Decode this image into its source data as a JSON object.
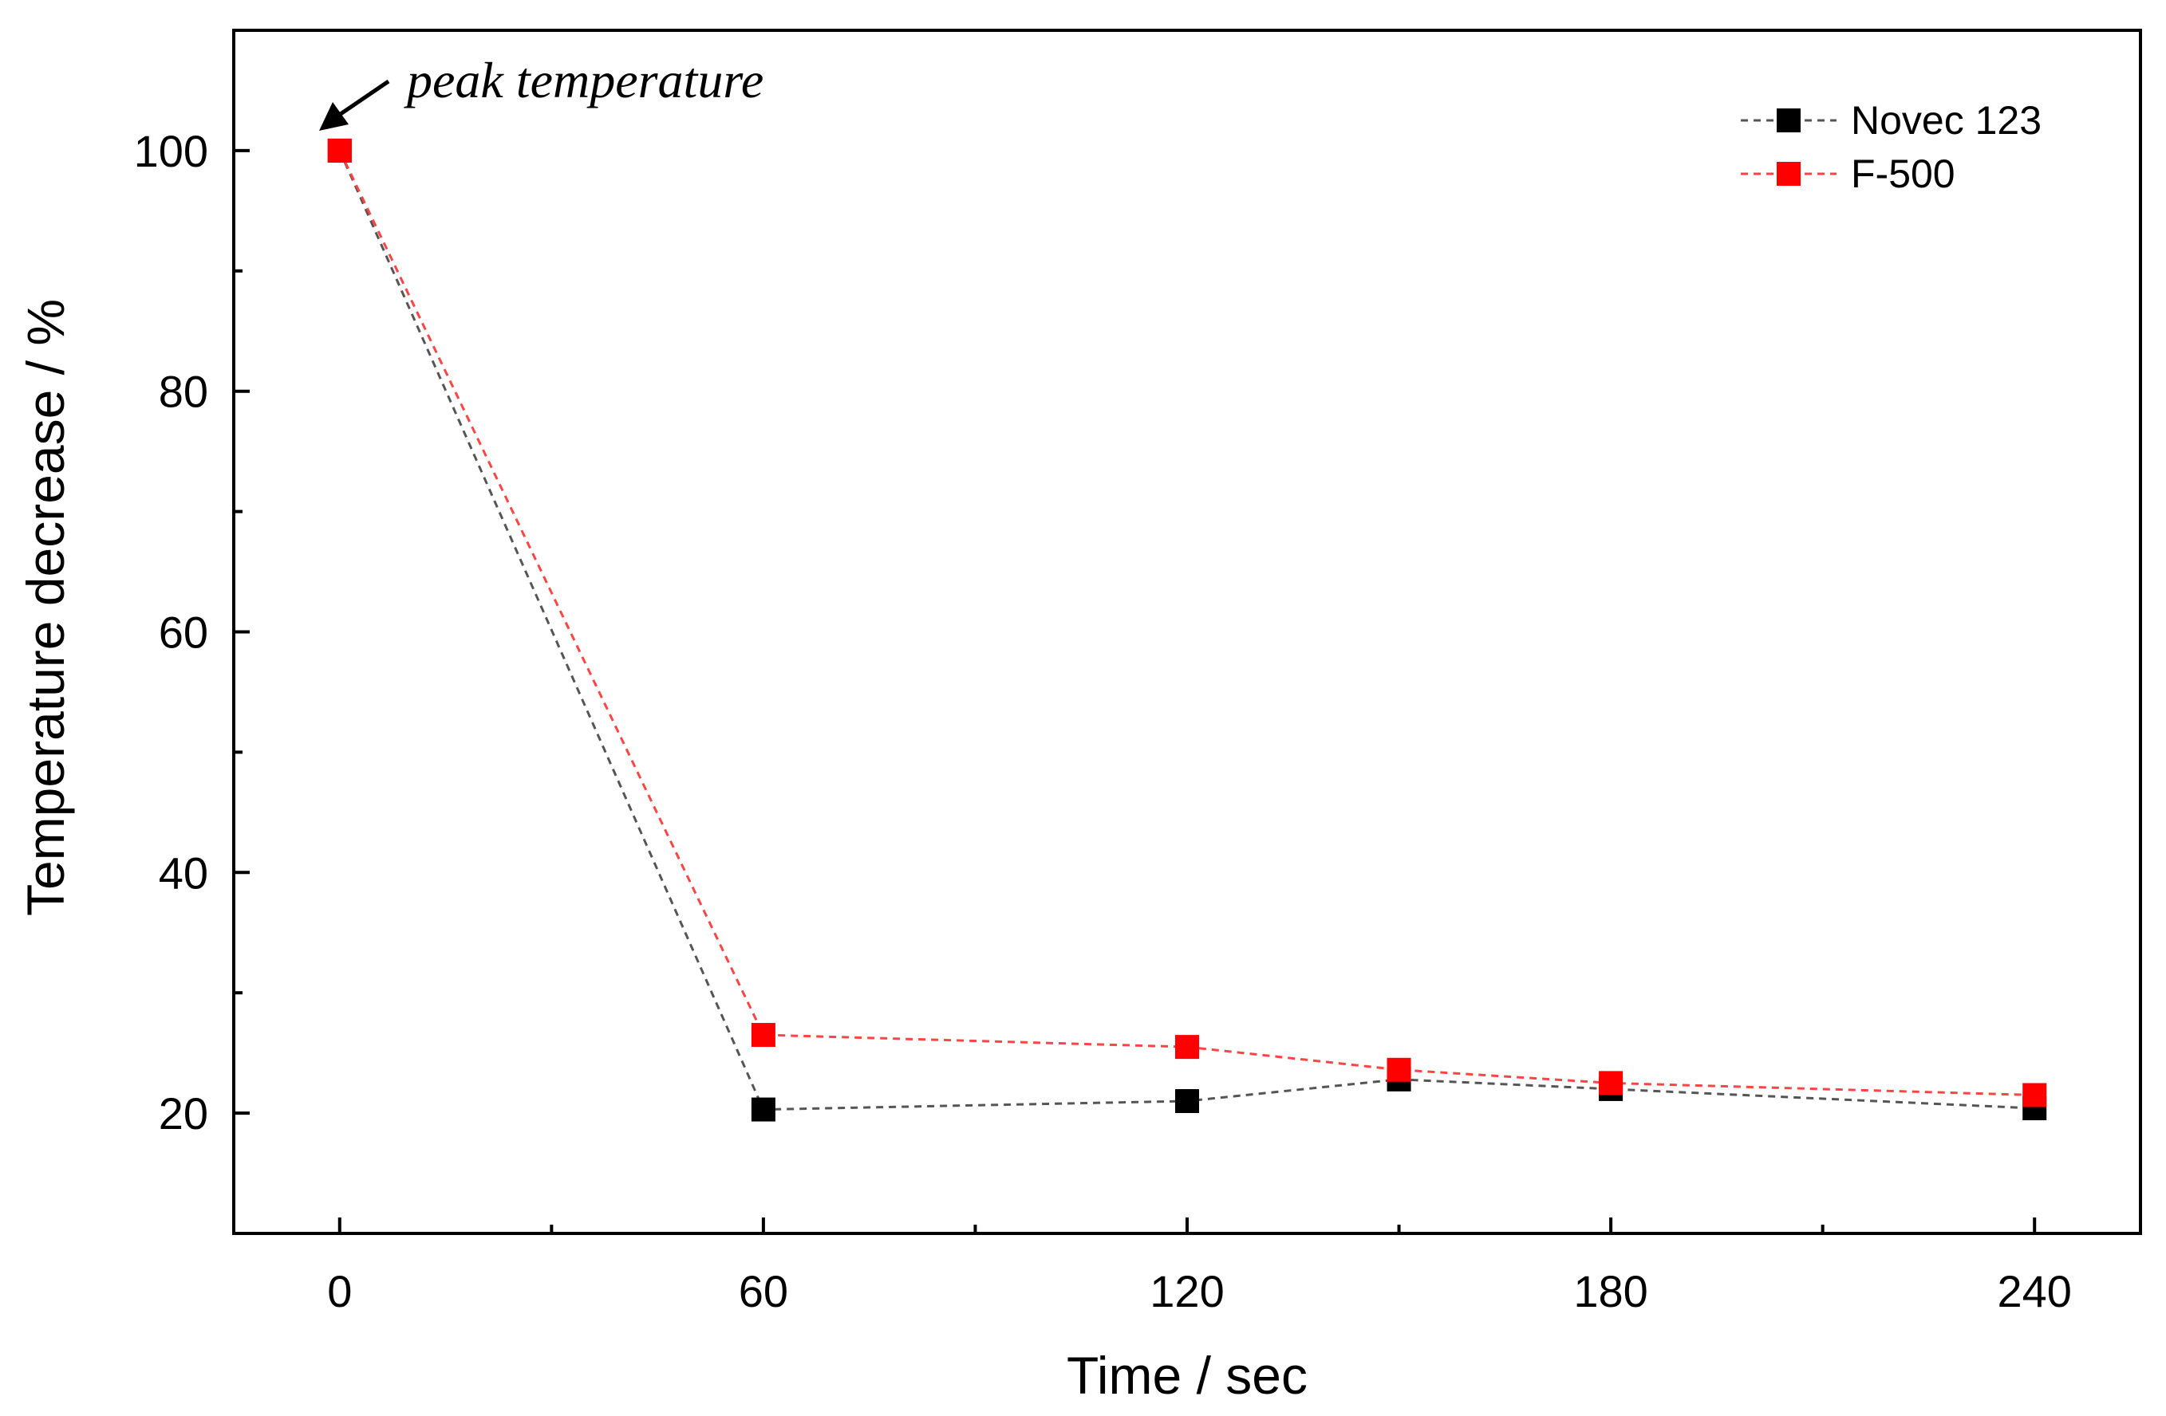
{
  "chart_data": {
    "type": "line",
    "title": "",
    "xlabel": "Time / sec",
    "ylabel": "Temperature decrease / %",
    "xlim": [
      -15,
      255
    ],
    "ylim": [
      10,
      110
    ],
    "xticks": [
      0,
      60,
      120,
      180,
      240
    ],
    "xtick_labels": [
      "0",
      "60",
      "120",
      "180",
      "240"
    ],
    "xminor": [
      30,
      90,
      150,
      210
    ],
    "yticks": [
      20,
      40,
      60,
      80,
      100
    ],
    "ytick_labels": [
      "20",
      "40",
      "60",
      "80",
      "100"
    ],
    "yminor": [
      30,
      50,
      70,
      90
    ],
    "grid": false,
    "legend_position": "top-right",
    "series": [
      {
        "name": "Novec 123",
        "color": "#000000",
        "line_color": "#555555",
        "marker": "square",
        "line_style": "dashed",
        "x": [
          0,
          60,
          120,
          150,
          180,
          240
        ],
        "y": [
          100,
          20.3,
          21.0,
          22.8,
          22.0,
          20.4
        ]
      },
      {
        "name": "F-500",
        "color": "#ff0000",
        "line_color": "#ff4444",
        "marker": "square",
        "line_style": "dashed",
        "x": [
          0,
          60,
          120,
          150,
          180,
          240
        ],
        "y": [
          100,
          26.5,
          25.5,
          23.6,
          22.5,
          21.5
        ]
      }
    ],
    "annotations": [
      {
        "text": "peak temperature",
        "points_to": {
          "x": 0,
          "y": 100
        }
      }
    ]
  }
}
